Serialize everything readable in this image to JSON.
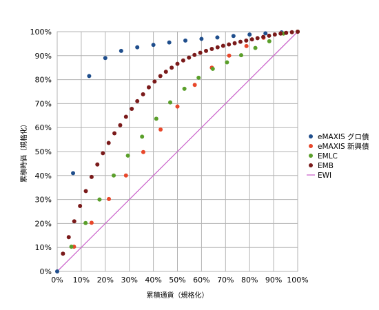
{
  "chart_data": {
    "type": "scatter",
    "xlabel": "累積通貨（規格化）",
    "ylabel": "累積時価（規格化）",
    "xlim": [
      0,
      100
    ],
    "ylim": [
      0,
      100
    ],
    "xticks": [
      "0%",
      "10%",
      "20%",
      "30%",
      "40%",
      "50%",
      "60%",
      "70%",
      "80%",
      "90%",
      "100%"
    ],
    "yticks": [
      "0%",
      "10%",
      "20%",
      "30%",
      "40%",
      "50%",
      "60%",
      "70%",
      "80%",
      "90%",
      "100%"
    ],
    "grid": true,
    "legend_position": "right",
    "series": [
      {
        "name": "eMAXIS グロ債",
        "color": "#1f4e8c",
        "marker": "circle",
        "points": [
          [
            0,
            0
          ],
          [
            6.6,
            41
          ],
          [
            13.3,
            81.5
          ],
          [
            20,
            89
          ],
          [
            26.6,
            92
          ],
          [
            33.3,
            93.5
          ],
          [
            40,
            94.5
          ],
          [
            46.6,
            95.5
          ],
          [
            53.3,
            96.3
          ],
          [
            60,
            97
          ],
          [
            66.6,
            97.6
          ],
          [
            73.3,
            98.2
          ],
          [
            80,
            98.8
          ],
          [
            86.6,
            99.3
          ],
          [
            93.3,
            99.7
          ],
          [
            100,
            100
          ]
        ]
      },
      {
        "name": "eMAXIS 新興債",
        "color": "#e8472a",
        "marker": "circle",
        "points": [
          [
            7,
            10.3
          ],
          [
            14.3,
            20.3
          ],
          [
            21.5,
            30.2
          ],
          [
            28.6,
            40
          ],
          [
            35.8,
            49.8
          ],
          [
            43,
            59.2
          ],
          [
            50,
            68.8
          ],
          [
            57.2,
            77.8
          ],
          [
            64.3,
            85
          ],
          [
            71.5,
            90
          ],
          [
            78.7,
            94
          ],
          [
            85.8,
            97.5
          ],
          [
            93,
            99.3
          ],
          [
            100,
            100
          ]
        ]
      },
      {
        "name": "EMLC",
        "color": "#5a9f2a",
        "marker": "circle",
        "points": [
          [
            5.9,
            10.3
          ],
          [
            11.8,
            20.2
          ],
          [
            17.6,
            30
          ],
          [
            23.5,
            40
          ],
          [
            29.4,
            48.3
          ],
          [
            35.3,
            56.2
          ],
          [
            41.2,
            63.7
          ],
          [
            47,
            70.5
          ],
          [
            52.9,
            76.2
          ],
          [
            58.8,
            80.8
          ],
          [
            64.7,
            84.5
          ],
          [
            70.6,
            87.2
          ],
          [
            76.5,
            90.2
          ],
          [
            82.4,
            93.2
          ],
          [
            88.2,
            96
          ],
          [
            94.1,
            99.2
          ],
          [
            100,
            100
          ]
        ]
      },
      {
        "name": "EMB",
        "color": "#7a1a1a",
        "marker": "circle",
        "points": [
          [
            2.4,
            7.4
          ],
          [
            4.8,
            14.3
          ],
          [
            7.1,
            20.9
          ],
          [
            9.5,
            27.3
          ],
          [
            11.9,
            33.5
          ],
          [
            14.3,
            39.4
          ],
          [
            16.7,
            44.6
          ],
          [
            19,
            49.3
          ],
          [
            21.4,
            53.6
          ],
          [
            23.8,
            57.6
          ],
          [
            26.2,
            61
          ],
          [
            28.6,
            64.5
          ],
          [
            31,
            67.8
          ],
          [
            33.3,
            71
          ],
          [
            35.7,
            73.9
          ],
          [
            38.1,
            76.8
          ],
          [
            40.5,
            79.2
          ],
          [
            42.9,
            81.5
          ],
          [
            45.2,
            83.3
          ],
          [
            47.6,
            85
          ],
          [
            50,
            86.6
          ],
          [
            52.4,
            88
          ],
          [
            54.8,
            89.2
          ],
          [
            57.1,
            90.3
          ],
          [
            59.5,
            91.2
          ],
          [
            61.9,
            92
          ],
          [
            64.3,
            92.8
          ],
          [
            66.7,
            93.5
          ],
          [
            69,
            94.1
          ],
          [
            71.4,
            94.7
          ],
          [
            73.8,
            95.2
          ],
          [
            76.2,
            95.8
          ],
          [
            78.6,
            96.3
          ],
          [
            81,
            96.8
          ],
          [
            83.3,
            97.3
          ],
          [
            85.7,
            97.8
          ],
          [
            88.1,
            98.3
          ],
          [
            90.5,
            98.8
          ],
          [
            92.9,
            99.2
          ],
          [
            95.2,
            99.5
          ],
          [
            97.6,
            99.8
          ],
          [
            100,
            100
          ]
        ]
      },
      {
        "name": "EWI",
        "color": "#cc66cc",
        "marker": "line",
        "points": [
          [
            0,
            0
          ],
          [
            100,
            100
          ]
        ]
      }
    ]
  }
}
